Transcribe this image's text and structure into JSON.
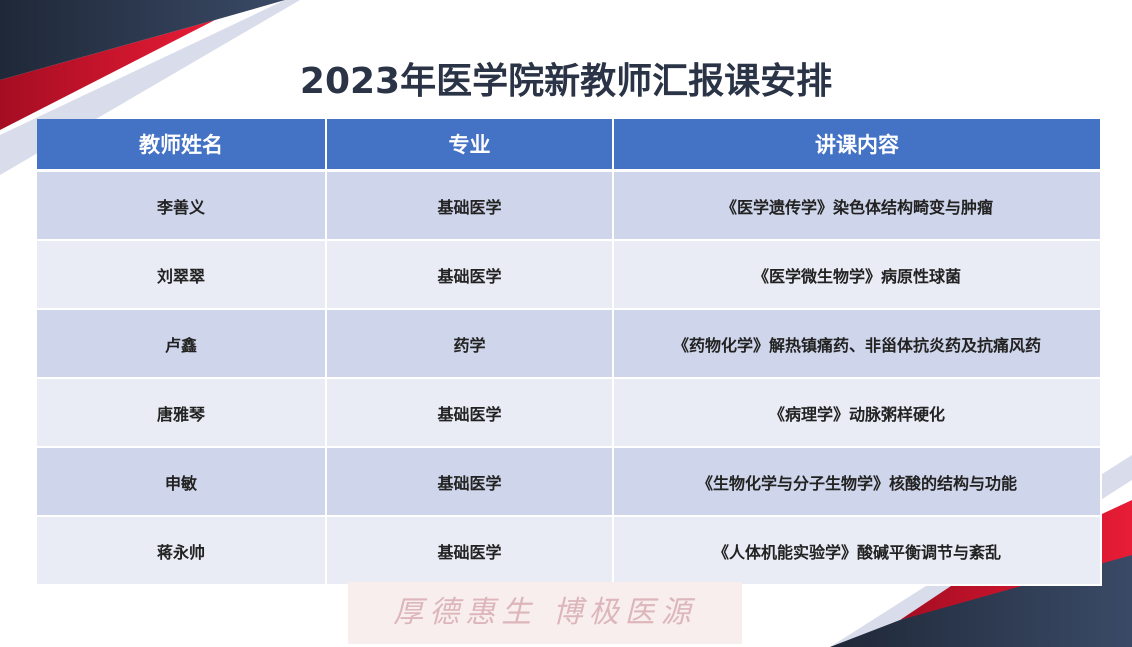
{
  "title": "2023年医学院新教师汇报课安排",
  "columns": [
    "教师姓名",
    "专业",
    "讲课内容"
  ],
  "rows": [
    [
      "李善义",
      "基础医学",
      "《医学遗传学》染色体结构畸变与肿瘤"
    ],
    [
      "刘翠翠",
      "基础医学",
      "《医学微生物学》病原性球菌"
    ],
    [
      "卢鑫",
      "药学",
      "《药物化学》解热镇痛药、非甾体抗炎药及抗痛风药"
    ],
    [
      "唐雅琴",
      "基础医学",
      "《病理学》动脉粥样硬化"
    ],
    [
      "申敏",
      "基础医学",
      "《生物化学与分子生物学》核酸的结构与功能"
    ],
    [
      "蒋永帅",
      "基础医学",
      "《人体机能实验学》酸碱平衡调节与紊乱"
    ]
  ],
  "motto": "厚德惠生 博极医源",
  "colors": {
    "header": "#4472c4",
    "row_odd": "#cfd5ea",
    "row_even": "#e9ebf5",
    "dark": "#2b3a55",
    "red": "#e01a33"
  }
}
